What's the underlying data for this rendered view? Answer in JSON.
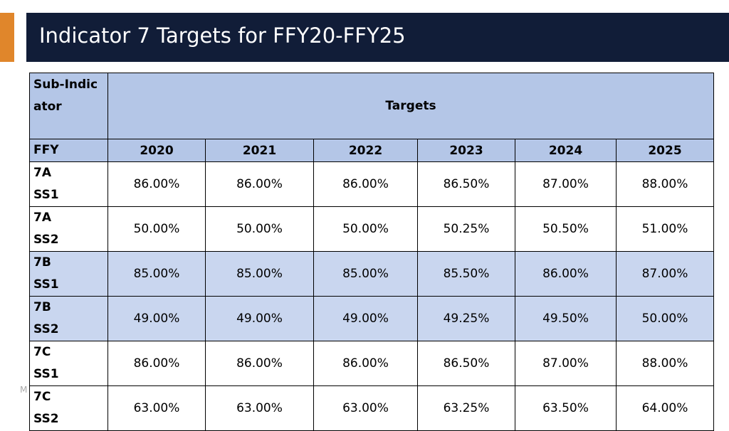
{
  "title": "Indicator 7 Targets for FFY20-FFY25",
  "footer": "M",
  "table": {
    "header": [
      "Sub-Indicator",
      "Targets"
    ],
    "years_label": "FFY",
    "years": [
      "2020",
      "2021",
      "2022",
      "2023",
      "2024",
      "2025"
    ],
    "rows": [
      {
        "label": [
          "7A",
          "SS1"
        ],
        "values": [
          "86.00%",
          "86.00%",
          "86.00%",
          "86.50%",
          "87.00%",
          "88.00%"
        ]
      },
      {
        "label": [
          "7A",
          "SS2"
        ],
        "values": [
          "50.00%",
          "50.00%",
          "50.00%",
          "50.25%",
          "50.50%",
          "51.00%"
        ]
      },
      {
        "label": [
          "7B",
          "SS1"
        ],
        "values": [
          "85.00%",
          "85.00%",
          "85.00%",
          "85.50%",
          "86.00%",
          "87.00%"
        ]
      },
      {
        "label": [
          "7B",
          "SS2"
        ],
        "values": [
          "49.00%",
          "49.00%",
          "49.00%",
          "49.25%",
          "49.50%",
          "50.00%"
        ]
      },
      {
        "label": [
          "7C",
          "SS1"
        ],
        "values": [
          "86.00%",
          "86.00%",
          "86.00%",
          "86.50%",
          "87.00%",
          "88.00%"
        ]
      },
      {
        "label": [
          "7C",
          "SS2"
        ],
        "values": [
          "63.00%",
          "63.00%",
          "63.00%",
          "63.25%",
          "63.50%",
          "64.00%"
        ]
      }
    ]
  }
}
